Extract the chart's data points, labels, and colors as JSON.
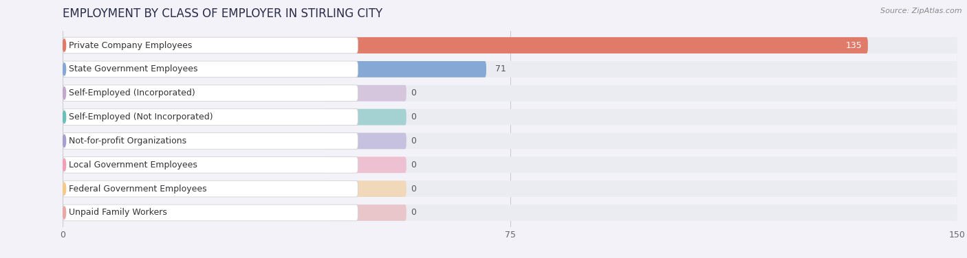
{
  "title": "EMPLOYMENT BY CLASS OF EMPLOYER IN STIRLING CITY",
  "source": "Source: ZipAtlas.com",
  "categories": [
    "Private Company Employees",
    "State Government Employees",
    "Self-Employed (Incorporated)",
    "Self-Employed (Not Incorporated)",
    "Not-for-profit Organizations",
    "Local Government Employees",
    "Federal Government Employees",
    "Unpaid Family Workers"
  ],
  "values": [
    135,
    71,
    0,
    0,
    0,
    0,
    0,
    0
  ],
  "bar_colors": [
    "#e07b6a",
    "#85a9d4",
    "#c4a8cc",
    "#6abfb8",
    "#a89fce",
    "#f0a0b8",
    "#f5c98a",
    "#e8a8a8"
  ],
  "value_colors": [
    "white",
    "#555555",
    "#555555",
    "#555555",
    "#555555",
    "#555555",
    "#555555",
    "#555555"
  ],
  "xlim_max": 150,
  "xticks": [
    0,
    75,
    150
  ],
  "bg_color": "#f2f2f8",
  "row_bg_color": "#ebebf2",
  "label_bg_color": "#ffffff",
  "title_color": "#2a2a4a",
  "source_color": "#888888",
  "label_text_color": "#333333",
  "title_fontsize": 12,
  "label_fontsize": 9,
  "value_fontsize": 9,
  "source_fontsize": 8
}
